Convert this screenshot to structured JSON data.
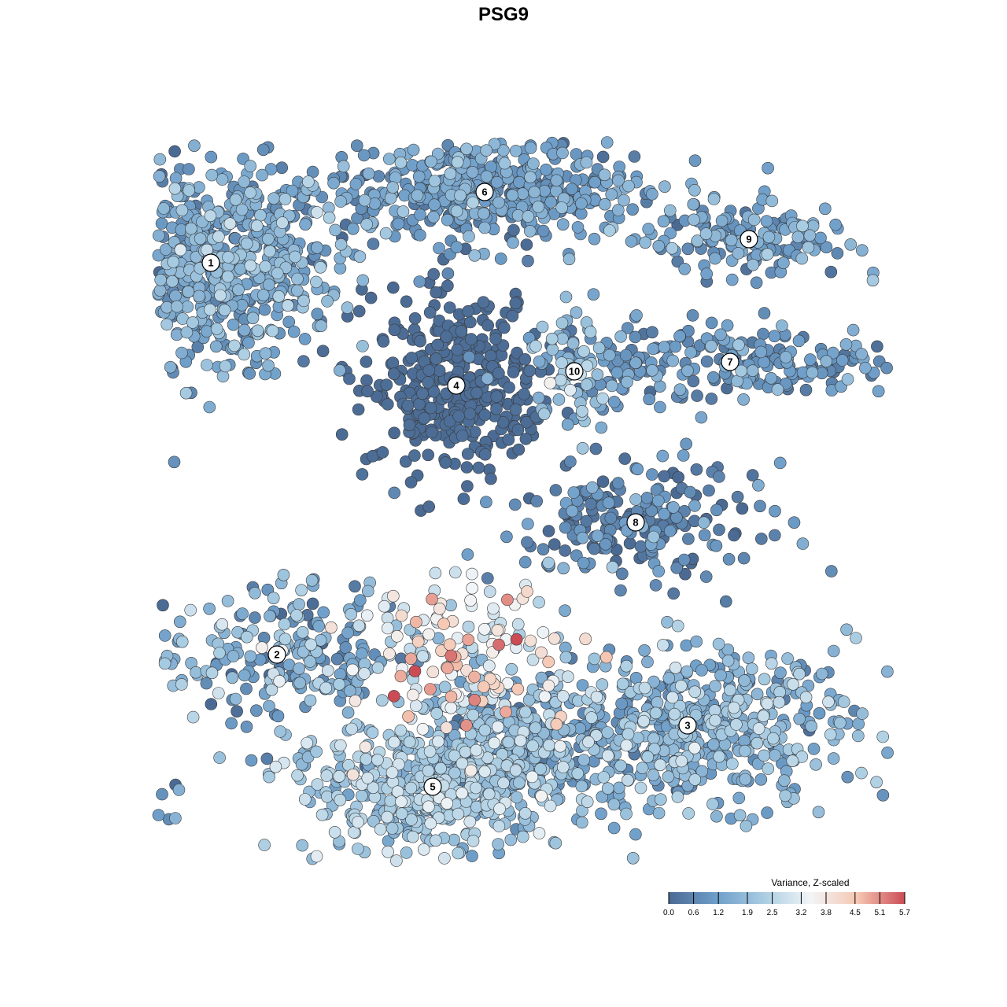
{
  "chart_data": {
    "type": "scatter",
    "title": "PSG9",
    "xlabel": "",
    "ylabel": "",
    "grid": false,
    "axes_visible": false,
    "color_scale": {
      "title": "Variance, Z-scaled",
      "min": 0.0,
      "max": 5.7,
      "ticks": [
        "0.0",
        "0.6",
        "1.2",
        "1.9",
        "2.5",
        "3.2",
        "3.8",
        "4.5",
        "5.1",
        "5.7"
      ],
      "colors": [
        "#4a6a93",
        "#6e9ec9",
        "#a8cce2",
        "#f2f5f7",
        "#f5c7b2",
        "#cb4c55"
      ],
      "legend_placement": "bottom-right"
    },
    "clusters": [
      {
        "label": "1",
        "x": -6.2,
        "y": 5.1,
        "sx": 1.35,
        "sy": 1.05,
        "n": 650,
        "mean": 1.35,
        "sd": 0.55
      },
      {
        "label": "6",
        "x": -0.4,
        "y": 6.6,
        "sx": 1.7,
        "sy": 0.55,
        "n": 480,
        "mean": 1.05,
        "sd": 0.5
      },
      {
        "label": "4",
        "x": -1.0,
        "y": 2.5,
        "sx": 0.95,
        "sy": 0.95,
        "n": 360,
        "mean": 0.05,
        "sd": 0.04
      },
      {
        "label": "9",
        "x": 5.2,
        "y": 5.6,
        "sx": 1.1,
        "sy": 0.42,
        "n": 140,
        "mean": 1.15,
        "sd": 0.5
      },
      {
        "label": "7",
        "x": 4.8,
        "y": 3.0,
        "sx": 1.8,
        "sy": 0.4,
        "n": 220,
        "mean": 0.9,
        "sd": 0.5
      },
      {
        "label": "10",
        "x": 1.5,
        "y": 2.8,
        "sx": 0.5,
        "sy": 0.6,
        "n": 70,
        "mean": 1.9,
        "sd": 0.5
      },
      {
        "label": "8",
        "x": 2.8,
        "y": -0.4,
        "sx": 1.3,
        "sy": 0.6,
        "n": 210,
        "mean": 0.5,
        "sd": 0.6
      },
      {
        "label": "2",
        "x": -4.8,
        "y": -3.2,
        "sx": 1.3,
        "sy": 0.8,
        "n": 220,
        "mean": 1.4,
        "sd": 0.8
      },
      {
        "label": "3",
        "x": 3.9,
        "y": -4.7,
        "sx": 1.75,
        "sy": 0.85,
        "n": 520,
        "mean": 1.6,
        "sd": 0.6
      },
      {
        "label": "5",
        "x": -1.5,
        "y": -6.0,
        "sx": 1.5,
        "sy": 0.7,
        "n": 460,
        "mean": 2.1,
        "sd": 0.5
      },
      {
        "label": "",
        "x": -0.8,
        "y": -3.2,
        "sx": 1.2,
        "sy": 0.8,
        "n": 160,
        "mean": 3.4,
        "sd": 1.0
      },
      {
        "label": "",
        "x": 0.2,
        "y": -4.9,
        "sx": 1.0,
        "sy": 0.7,
        "n": 220,
        "mean": 1.4,
        "sd": 0.7
      },
      {
        "label": "",
        "x": -8.0,
        "y": -6.4,
        "sx": 0.8,
        "sy": 0.25,
        "n": 30,
        "mean": 0.6,
        "sd": 0.5
      }
    ]
  }
}
